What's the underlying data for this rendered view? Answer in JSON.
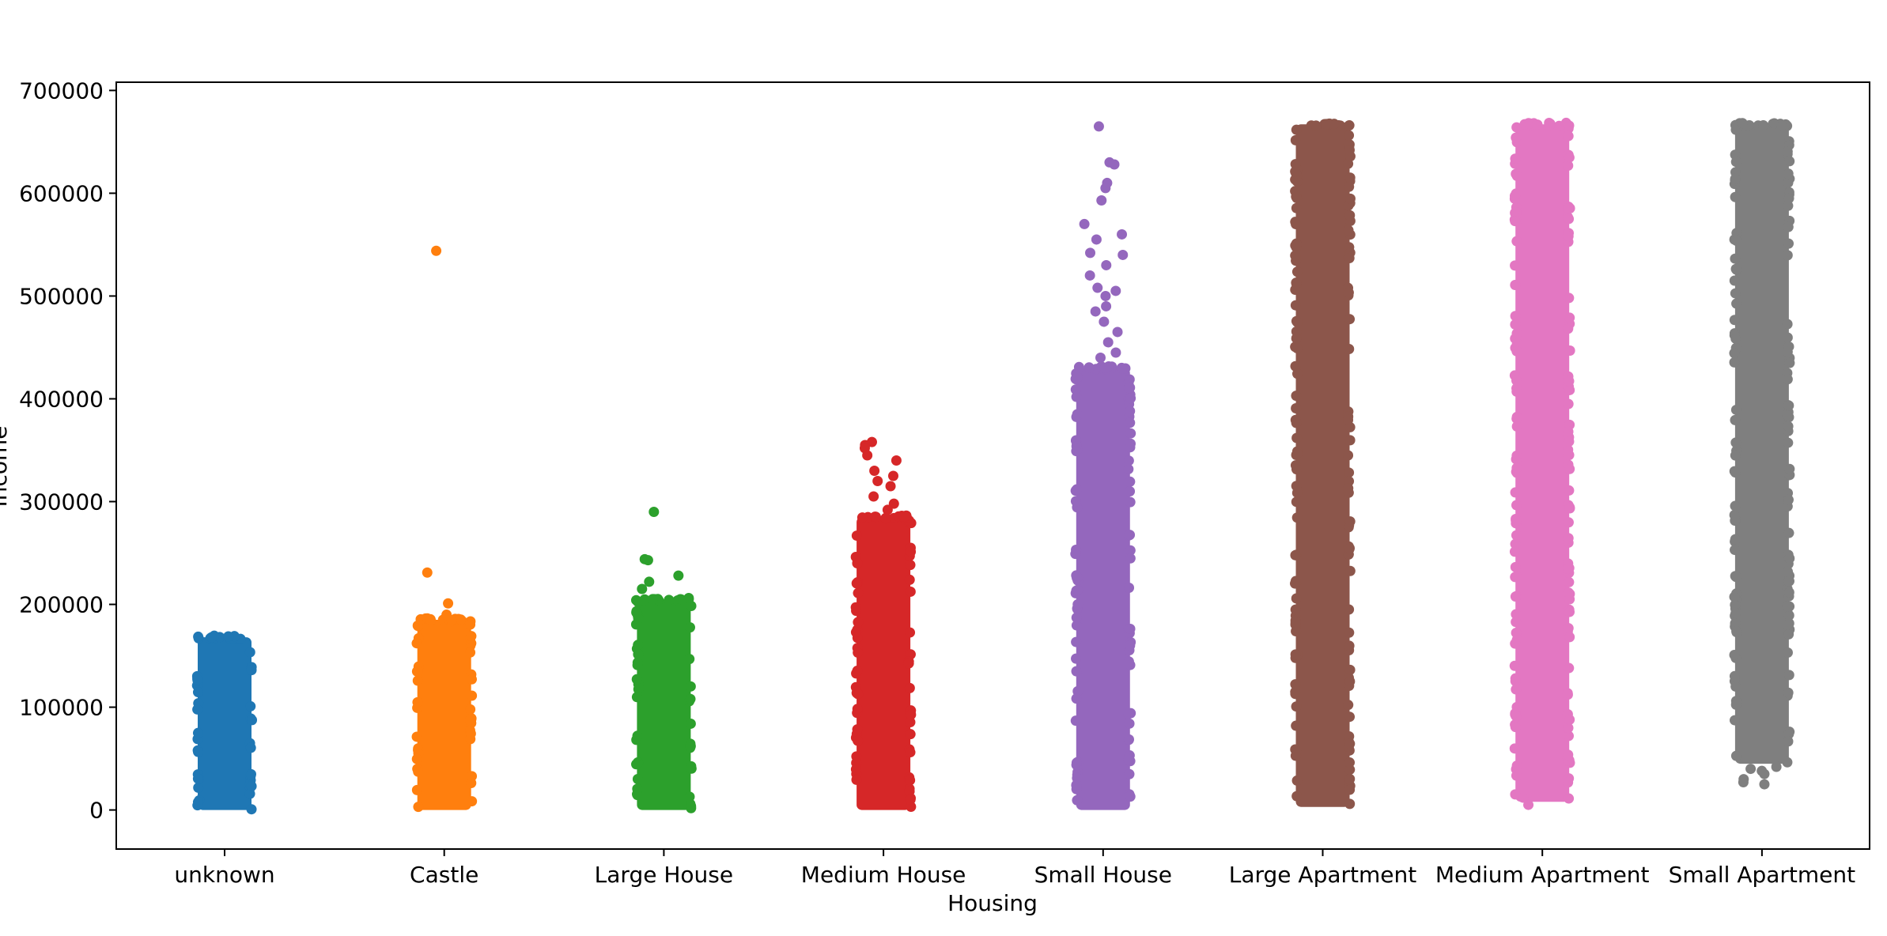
{
  "chart_data": {
    "type": "scatter",
    "subtype": "strip",
    "title": "",
    "xlabel": "Housing",
    "ylabel": "Income",
    "ylim": [
      -38000,
      708000
    ],
    "yticks": [
      0,
      100000,
      200000,
      300000,
      400000,
      500000,
      600000,
      700000
    ],
    "ytick_labels": [
      "0",
      "100000",
      "200000",
      "300000",
      "400000",
      "500000",
      "600000",
      "700000"
    ],
    "grid": false,
    "legend": "none",
    "categories": [
      "unknown",
      "Castle",
      "Large House",
      "Medium House",
      "Small House",
      "Large Apartment",
      "Medium Apartment",
      "Small Apartment"
    ],
    "series": [
      {
        "category": "unknown",
        "color": "#1f77b4",
        "range": [
          0,
          168000
        ],
        "outliers": []
      },
      {
        "category": "Castle",
        "color": "#ff7f0e",
        "range": [
          0,
          185000
        ],
        "outliers": [
          544000,
          231000,
          201000,
          190000
        ]
      },
      {
        "category": "Large House",
        "color": "#2ca02c",
        "range": [
          0,
          205000
        ],
        "outliers": [
          290000,
          244000,
          243000,
          228000,
          222000,
          215000
        ]
      },
      {
        "category": "Medium House",
        "color": "#d62728",
        "range": [
          0,
          285000
        ],
        "outliers": [
          358000,
          355000,
          352000,
          345000,
          340000,
          330000,
          325000,
          320000,
          315000,
          305000,
          298000,
          292000
        ]
      },
      {
        "category": "Small House",
        "color": "#9467bd",
        "range": [
          0,
          430000
        ],
        "outliers": [
          665000,
          630000,
          628000,
          610000,
          605000,
          593000,
          570000,
          560000,
          555000,
          542000,
          540000,
          530000,
          520000,
          508000,
          505000,
          500000,
          490000,
          485000,
          475000,
          465000,
          455000,
          445000,
          440000
        ]
      },
      {
        "category": "Large Apartment",
        "color": "#8c564b",
        "range": [
          3000,
          667000
        ],
        "outliers": []
      },
      {
        "category": "Medium Apartment",
        "color": "#e377c2",
        "range": [
          8000,
          667000
        ],
        "outliers": [
          5000,
          12000
        ]
      },
      {
        "category": "Small Apartment",
        "color": "#7f7f7f",
        "range": [
          45000,
          667000
        ],
        "outliers": [
          25000,
          27000,
          30000,
          35000,
          38000,
          40000,
          42000
        ]
      }
    ]
  }
}
